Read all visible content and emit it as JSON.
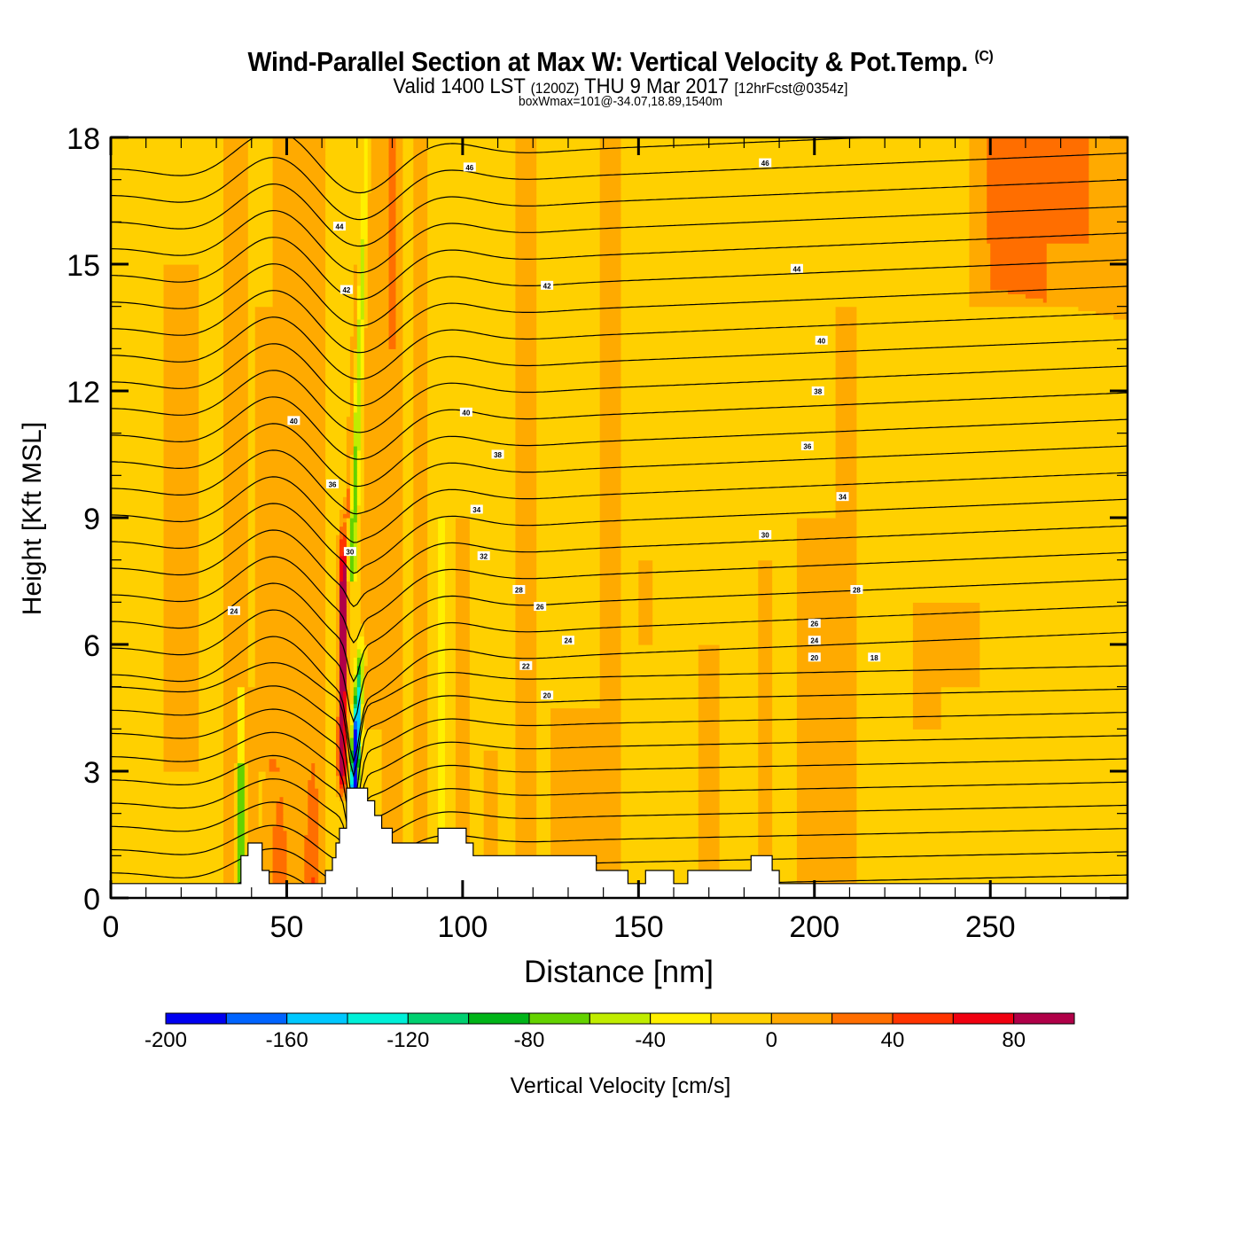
{
  "header": {
    "title": "Wind-Parallel Section at Max W: Vertical Velocity & Pot.Temp.",
    "copyright": "(C)",
    "valid_prefix": "Valid 1400 LST",
    "valid_utc": "(1200Z)",
    "valid_date": "THU 9 Mar 2017",
    "forecast": "[12hrFcst@0354z]",
    "boxwmax": "boxWmax=101@-34.07,18.89,1540m"
  },
  "chart_data": {
    "type": "heatmap",
    "title": "Wind-Parallel Section at Max W: Vertical Velocity & Pot.Temp.",
    "xlabel": "Distance [nm]",
    "ylabel": "Height [Kft MSL]",
    "xlim": [
      0,
      289
    ],
    "ylim": [
      0,
      18
    ],
    "xticks": [
      0,
      50,
      100,
      150,
      200,
      250
    ],
    "xtick_labels": [
      "0",
      "50",
      "100",
      "150",
      "200",
      "250"
    ],
    "yticks": [
      0,
      3,
      6,
      9,
      12,
      15,
      18
    ],
    "ytick_labels": [
      "0",
      "3",
      "6",
      "9",
      "12",
      "15",
      "18"
    ],
    "colorbar": {
      "label": "Vertical Velocity [cm/s]",
      "bounds": [
        -200,
        -180,
        -160,
        -140,
        -120,
        -100,
        -80,
        -60,
        -40,
        -20,
        0,
        20,
        40,
        60,
        80,
        100
      ],
      "tick_values": [
        -200,
        -160,
        -120,
        -80,
        -40,
        0,
        40,
        80
      ],
      "tick_labels": [
        "-200",
        "-160",
        "-120",
        "-80",
        "-40",
        "0",
        "40",
        "80"
      ],
      "colors": [
        "#0000f0",
        "#0064ff",
        "#00c8ff",
        "#00f0d8",
        "#00d070",
        "#00b418",
        "#64d200",
        "#c0ec00",
        "#fff000",
        "#ffd000",
        "#ffaa00",
        "#ff6e00",
        "#ff3400",
        "#f00010",
        "#b00048"
      ]
    },
    "background_band": "-20 to 0",
    "features": [
      {
        "name": "main updraft",
        "x_nm": 66,
        "y_range_kft": [
          3,
          9
        ],
        "value_cm_s": 90
      },
      {
        "name": "main downdraft",
        "x_nm": 69,
        "y_range_kft": [
          2,
          5.5
        ],
        "value_cm_s": -190
      },
      {
        "name": "upper sloping downdraft",
        "x_nm": [
          67,
          70
        ],
        "y_range_kft": [
          9,
          18
        ],
        "value_cm_s": -60
      }
    ],
    "max_w_label": "boxWmax=101",
    "terrain_kft": {
      "x_nm": [
        0,
        37,
        37,
        39,
        39,
        43,
        43,
        45,
        45,
        61,
        61,
        63,
        63,
        64,
        64,
        65,
        65,
        67,
        67,
        73,
        73,
        75,
        75,
        77,
        77,
        80,
        80,
        83,
        83,
        93,
        93,
        101,
        101,
        103,
        103,
        138,
        138,
        147,
        147,
        152,
        152,
        160,
        160,
        164,
        164,
        182,
        182,
        188,
        188,
        190,
        190,
        289
      ],
      "height": [
        0.34,
        0.34,
        1.0,
        1.0,
        1.3,
        1.3,
        0.65,
        0.65,
        0.34,
        0.34,
        0.65,
        0.65,
        0.95,
        0.95,
        1.3,
        1.3,
        1.65,
        1.65,
        2.6,
        2.6,
        2.3,
        2.3,
        1.95,
        1.95,
        1.65,
        1.65,
        1.3,
        1.3,
        1.3,
        1.3,
        1.65,
        1.65,
        1.3,
        1.3,
        1.0,
        1.0,
        0.65,
        0.65,
        0.34,
        0.34,
        0.65,
        0.65,
        0.34,
        0.34,
        0.65,
        0.65,
        1.0,
        1.0,
        0.65,
        0.65,
        0.34,
        0.34
      ]
    },
    "theta_contour_labels": [
      "46",
      "46",
      "44",
      "44",
      "42",
      "42",
      "40",
      "40",
      "40",
      "38",
      "38",
      "36",
      "36",
      "34",
      "34",
      "32",
      "30",
      "30",
      "28",
      "28",
      "26",
      "26",
      "24",
      "24",
      "24",
      "22",
      "20",
      "20",
      "18"
    ],
    "theta_levels": [
      18,
      19,
      20,
      21,
      22,
      23,
      24,
      25,
      26,
      27,
      28,
      29,
      30,
      31,
      32,
      33,
      34,
      35,
      36,
      37,
      38,
      39,
      40,
      41,
      42,
      43,
      44,
      45,
      46,
      47
    ]
  },
  "colorbar_tick_labels": [
    "-200",
    "-160",
    "-120",
    "-80",
    "-40",
    "0",
    "40",
    "80"
  ],
  "axis": {
    "xlabel": "Distance [nm]",
    "ylabel": "Height [Kft MSL]",
    "colorbar_label": "Vertical Velocity [cm/s]"
  }
}
